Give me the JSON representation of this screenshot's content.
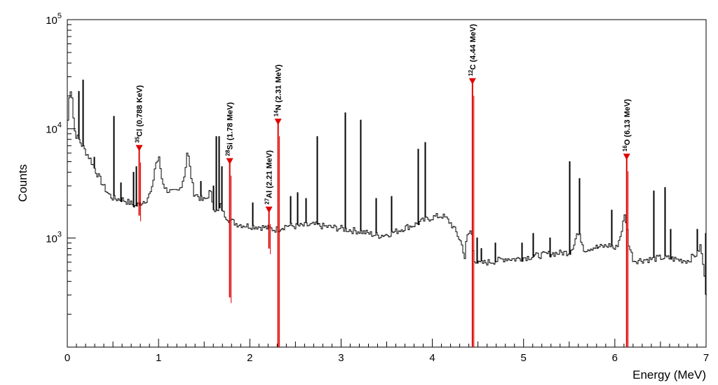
{
  "chart_data": {
    "type": "line",
    "title": "",
    "xlabel": "Energy (MeV)",
    "ylabel": "Counts",
    "xlim": [
      0,
      7
    ],
    "ylim": [
      100,
      100000
    ],
    "yscale": "log",
    "x_ticks": [
      0,
      1,
      2,
      3,
      4,
      5,
      6,
      7
    ],
    "y_ticks": [
      {
        "value": 1000,
        "base": "10",
        "exp": "3"
      },
      {
        "value": 10000,
        "base": "10",
        "exp": "4"
      },
      {
        "value": 100000,
        "base": "10",
        "exp": "5"
      }
    ],
    "colors": {
      "spectrum": "#000000",
      "peaks": "#e00000"
    },
    "continuum": [
      [
        0.0,
        12000
      ],
      [
        0.02,
        22000
      ],
      [
        0.04,
        24000
      ],
      [
        0.06,
        13000
      ],
      [
        0.08,
        9000
      ],
      [
        0.12,
        8000
      ],
      [
        0.18,
        6500
      ],
      [
        0.25,
        5200
      ],
      [
        0.3,
        4200
      ],
      [
        0.35,
        3500
      ],
      [
        0.4,
        2900
      ],
      [
        0.45,
        2500
      ],
      [
        0.5,
        2300
      ],
      [
        0.6,
        2250
      ],
      [
        0.68,
        2100
      ],
      [
        0.74,
        1950
      ],
      [
        0.8,
        2100
      ],
      [
        0.86,
        2250
      ],
      [
        0.92,
        2700
      ],
      [
        0.96,
        4800
      ],
      [
        1.0,
        5300
      ],
      [
        1.03,
        3500
      ],
      [
        1.07,
        2800
      ],
      [
        1.15,
        2600
      ],
      [
        1.22,
        2700
      ],
      [
        1.28,
        3800
      ],
      [
        1.31,
        6500
      ],
      [
        1.34,
        4200
      ],
      [
        1.38,
        2600
      ],
      [
        1.43,
        2400
      ],
      [
        1.48,
        2200
      ],
      [
        1.52,
        2300
      ],
      [
        1.56,
        2700
      ],
      [
        1.6,
        1900
      ],
      [
        1.64,
        1700
      ],
      [
        1.68,
        2000
      ],
      [
        1.7,
        1700
      ],
      [
        1.73,
        1600
      ],
      [
        1.76,
        1500
      ],
      [
        1.78,
        1450
      ],
      [
        1.85,
        1350
      ],
      [
        1.95,
        1300
      ],
      [
        2.05,
        1280
      ],
      [
        2.15,
        1250
      ],
      [
        2.2,
        1230
      ],
      [
        2.25,
        1200
      ],
      [
        2.3,
        1200
      ],
      [
        2.34,
        1250
      ],
      [
        2.4,
        1300
      ],
      [
        2.5,
        1280
      ],
      [
        2.6,
        1300
      ],
      [
        2.7,
        1320
      ],
      [
        2.8,
        1280
      ],
      [
        2.9,
        1250
      ],
      [
        3.0,
        1220
      ],
      [
        3.1,
        1180
      ],
      [
        3.2,
        1150
      ],
      [
        3.3,
        1100
      ],
      [
        3.4,
        1050
      ],
      [
        3.5,
        1080
      ],
      [
        3.6,
        1150
      ],
      [
        3.7,
        1250
      ],
      [
        3.8,
        1320
      ],
      [
        3.9,
        1450
      ],
      [
        4.0,
        1550
      ],
      [
        4.1,
        1600
      ],
      [
        4.15,
        1500
      ],
      [
        4.2,
        1350
      ],
      [
        4.25,
        1150
      ],
      [
        4.3,
        950
      ],
      [
        4.33,
        800
      ],
      [
        4.35,
        650
      ],
      [
        4.37,
        1000
      ],
      [
        4.42,
        1200
      ],
      [
        4.45,
        650
      ],
      [
        4.5,
        580
      ],
      [
        4.6,
        600
      ],
      [
        4.7,
        620
      ],
      [
        4.8,
        650
      ],
      [
        4.9,
        640
      ],
      [
        5.0,
        660
      ],
      [
        5.1,
        680
      ],
      [
        5.2,
        700
      ],
      [
        5.3,
        720
      ],
      [
        5.4,
        730
      ],
      [
        5.5,
        740
      ],
      [
        5.55,
        900
      ],
      [
        5.58,
        1100
      ],
      [
        5.62,
        1000
      ],
      [
        5.66,
        780
      ],
      [
        5.75,
        820
      ],
      [
        5.85,
        830
      ],
      [
        5.95,
        860
      ],
      [
        6.0,
        780
      ],
      [
        6.05,
        1000
      ],
      [
        6.08,
        1300
      ],
      [
        6.1,
        1600
      ],
      [
        6.12,
        1400
      ],
      [
        6.15,
        850
      ],
      [
        6.2,
        620
      ],
      [
        6.3,
        630
      ],
      [
        6.4,
        640
      ],
      [
        6.5,
        660
      ],
      [
        6.6,
        650
      ],
      [
        6.7,
        630
      ],
      [
        6.8,
        620
      ],
      [
        6.85,
        680
      ],
      [
        6.9,
        720
      ],
      [
        6.93,
        850
      ],
      [
        6.96,
        600
      ],
      [
        6.98,
        400
      ],
      [
        7.0,
        280
      ]
    ],
    "spikes": [
      {
        "x": 0.12,
        "y": 22000
      },
      {
        "x": 0.17,
        "y": 28000
      },
      {
        "x": 0.29,
        "y": 5500
      },
      {
        "x": 0.51,
        "y": 13000
      },
      {
        "x": 0.59,
        "y": 3200
      },
      {
        "x": 0.72,
        "y": 4000
      },
      {
        "x": 0.75,
        "y": 4500
      },
      {
        "x": 1.46,
        "y": 3300
      },
      {
        "x": 1.6,
        "y": 3000
      },
      {
        "x": 1.63,
        "y": 8500
      },
      {
        "x": 1.66,
        "y": 8500
      },
      {
        "x": 1.7,
        "y": 4500
      },
      {
        "x": 2.03,
        "y": 2100
      },
      {
        "x": 2.45,
        "y": 2400
      },
      {
        "x": 2.52,
        "y": 2600
      },
      {
        "x": 2.62,
        "y": 2300
      },
      {
        "x": 2.74,
        "y": 8500
      },
      {
        "x": 3.04,
        "y": 14000
      },
      {
        "x": 3.22,
        "y": 12000
      },
      {
        "x": 3.39,
        "y": 2300
      },
      {
        "x": 3.55,
        "y": 2400
      },
      {
        "x": 3.84,
        "y": 6500
      },
      {
        "x": 3.93,
        "y": 7500
      },
      {
        "x": 4.49,
        "y": 1000
      },
      {
        "x": 4.54,
        "y": 800
      },
      {
        "x": 4.69,
        "y": 900
      },
      {
        "x": 4.98,
        "y": 900
      },
      {
        "x": 5.11,
        "y": 1100
      },
      {
        "x": 5.29,
        "y": 1000
      },
      {
        "x": 5.51,
        "y": 5000
      },
      {
        "x": 5.62,
        "y": 3500
      },
      {
        "x": 5.81,
        "y": 800
      },
      {
        "x": 5.96,
        "y": 1800
      },
      {
        "x": 6.42,
        "y": 2700
      },
      {
        "x": 6.55,
        "y": 2900
      },
      {
        "x": 6.61,
        "y": 1200
      },
      {
        "x": 6.91,
        "y": 1200
      },
      {
        "x": 6.99,
        "y": 1100
      }
    ],
    "peaks": [
      {
        "x": 0.788,
        "marker_y": 6600,
        "top_y": 6600,
        "bottom_y": 1600,
        "label_sup": "35",
        "label_main": "Cl (0.788 KeV)"
      },
      {
        "x": 1.78,
        "marker_y": 5000,
        "top_y": 5000,
        "bottom_y": 285,
        "label_sup": "28",
        "label_main": "Si (1.78 MeV)"
      },
      {
        "x": 2.21,
        "marker_y": 1800,
        "top_y": 1800,
        "bottom_y": 800,
        "label_sup": "27",
        "label_main": "Al (2.21 MeV)"
      },
      {
        "x": 2.31,
        "marker_y": 11500,
        "top_y": 11500,
        "bottom_y": 100,
        "label_sup": "14",
        "label_main": "N (2.31 MeV)"
      },
      {
        "x": 4.44,
        "marker_y": 27000,
        "top_y": 27000,
        "bottom_y": 100,
        "label_sup": "12",
        "label_main": "C (4.44 MeV)"
      },
      {
        "x": 6.13,
        "marker_y": 5500,
        "top_y": 5500,
        "bottom_y": 100,
        "label_sup": "16",
        "label_main": "O (6.13 MeV)"
      }
    ]
  }
}
